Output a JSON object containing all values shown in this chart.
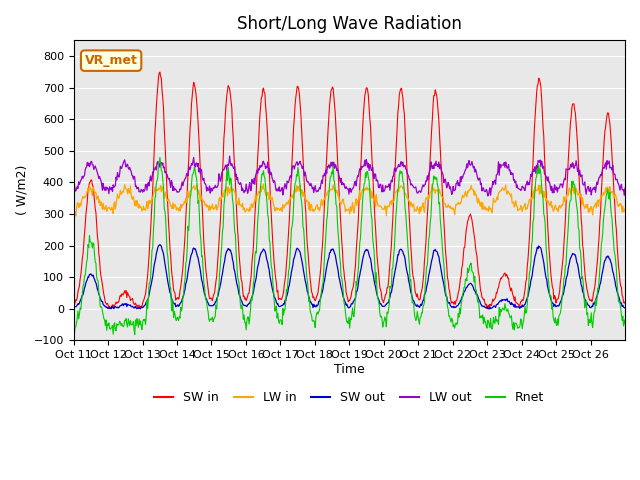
{
  "title": "Short/Long Wave Radiation",
  "xlabel": "Time",
  "ylabel": "( W/m2)",
  "ylim": [
    -100,
    850
  ],
  "yticks": [
    -100,
    0,
    100,
    200,
    300,
    400,
    500,
    600,
    700,
    800
  ],
  "xtick_labels": [
    "Oct 11",
    "Oct 12",
    "Oct 13",
    "Oct 14",
    "Oct 15",
    "Oct 16",
    "Oct 17",
    "Oct 18",
    "Oct 19",
    "Oct 20",
    "Oct 21",
    "Oct 22",
    "Oct 23",
    "Oct 24",
    "Oct 25",
    "Oct 26"
  ],
  "colors": {
    "SW_in": "#ff0000",
    "LW_in": "#ffa500",
    "SW_out": "#0000cc",
    "LW_out": "#9900cc",
    "Rnet": "#00cc00"
  },
  "legend_labels": [
    "SW in",
    "LW in",
    "SW out",
    "LW out",
    "Rnet"
  ],
  "annotation_text": "VR_met",
  "annotation_color": "#cc6600",
  "background_color": "#e8e8e8",
  "n_days": 16,
  "pts_per_day": 48,
  "SW_in_peaks": [
    410,
    50,
    745,
    710,
    705,
    700,
    700,
    700,
    700,
    700,
    690,
    295,
    110,
    730,
    650,
    620
  ],
  "LW_in_night": 310,
  "LW_in_day_boost": 70,
  "LW_out_night": 360,
  "LW_out_day_boost": 100
}
